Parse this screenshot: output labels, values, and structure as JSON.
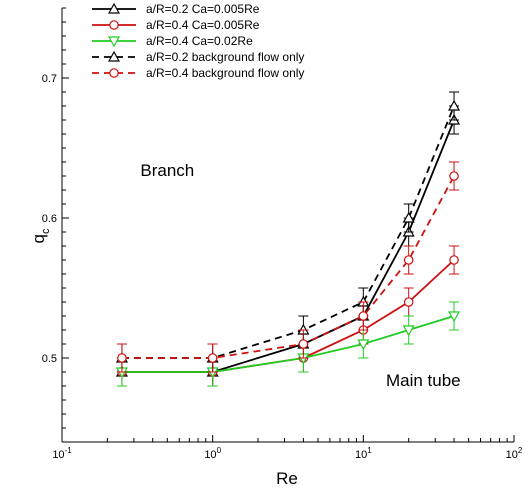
{
  "chart_data": {
    "type": "line",
    "xlabel": "Re",
    "ylabel": "q",
    "ylabel_sub": "c",
    "xscale": "log",
    "xlim": [
      0.1,
      100
    ],
    "ylim": [
      0.44,
      0.75
    ],
    "x_ticks": [
      {
        "value": 0.1,
        "base": "10",
        "exp": "-1"
      },
      {
        "value": 1,
        "base": "10",
        "exp": "0"
      },
      {
        "value": 10,
        "base": "10",
        "exp": "1"
      },
      {
        "value": 100,
        "base": "10",
        "exp": "2"
      }
    ],
    "y_ticks": [
      {
        "value": 0.5,
        "label": "0.5"
      },
      {
        "value": 0.6,
        "label": "0.6"
      },
      {
        "value": 0.7,
        "label": "0.7"
      }
    ],
    "grid": false,
    "legend_position": "top-left",
    "annotations": [
      {
        "text": "Branch",
        "x": 0.5,
        "y": 0.63
      },
      {
        "text": "Main tube",
        "x": 25,
        "y": 0.48
      }
    ],
    "series": [
      {
        "name": "a/R=0.2 Ca=0.005Re",
        "color": "#000000",
        "dash": "solid",
        "marker": "triangle-up",
        "x": [
          0.25,
          1,
          4,
          10,
          20,
          40
        ],
        "y": [
          0.49,
          0.49,
          0.51,
          0.53,
          0.59,
          0.67
        ],
        "err": [
          0.01,
          0.01,
          0.01,
          0.01,
          0.01,
          0.01
        ]
      },
      {
        "name": "a/R=0.4 Ca=0.005Re",
        "color": "#cc1111",
        "dash": "solid",
        "marker": "circle",
        "x": [
          0.25,
          1,
          4,
          10,
          20,
          40
        ],
        "y": [
          0.49,
          0.49,
          0.5,
          0.52,
          0.54,
          0.57
        ],
        "err": [
          0.01,
          0.01,
          0.01,
          0.01,
          0.01,
          0.01
        ]
      },
      {
        "name": "a/R=0.4 Ca=0.02Re",
        "color": "#22cc22",
        "dash": "solid",
        "marker": "triangle-down",
        "x": [
          0.25,
          1,
          4,
          10,
          20,
          40
        ],
        "y": [
          0.49,
          0.49,
          0.5,
          0.51,
          0.52,
          0.53
        ],
        "err": [
          0.01,
          0.01,
          0.01,
          0.01,
          0.01,
          0.01
        ]
      },
      {
        "name": "a/R=0.2 background flow only",
        "color": "#000000",
        "dash": "dashed",
        "marker": "triangle-up",
        "x": [
          0.25,
          1,
          4,
          10,
          20,
          40
        ],
        "y": [
          0.5,
          0.5,
          0.52,
          0.54,
          0.6,
          0.68
        ],
        "err": [
          0.01,
          0.01,
          0.01,
          0.01,
          0.01,
          0.01
        ]
      },
      {
        "name": "a/R=0.4 background flow only",
        "color": "#cc1111",
        "dash": "dashed",
        "marker": "circle",
        "x": [
          0.25,
          1,
          4,
          10,
          20,
          40
        ],
        "y": [
          0.5,
          0.5,
          0.51,
          0.53,
          0.57,
          0.63
        ],
        "err": [
          0.01,
          0.01,
          0.01,
          0.01,
          0.01,
          0.01
        ]
      }
    ]
  }
}
